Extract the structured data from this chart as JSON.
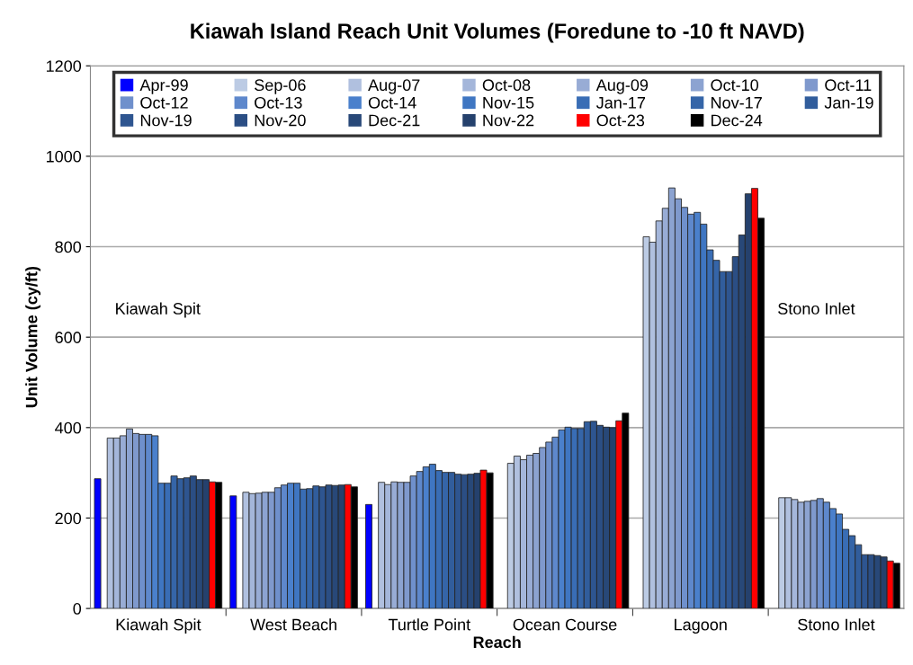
{
  "chart_data": {
    "type": "bar",
    "title": "Kiawah Island Reach Unit Volumes (Foredune to -10 ft NAVD)",
    "xlabel": "Reach",
    "ylabel": "Unit Volume (cy/ft)",
    "categories": [
      "Kiawah Spit",
      "West Beach",
      "Turtle Point",
      "Ocean Course",
      "Lagoon",
      "Stono Inlet"
    ],
    "ylim": [
      0,
      1200
    ],
    "yticks": [
      0,
      200,
      400,
      600,
      800,
      1000,
      1200
    ],
    "grid": "y",
    "legend": "top",
    "annotations": [
      "Kiawah Spit",
      "Stono Inlet"
    ],
    "series": [
      {
        "name": "Apr-99",
        "color": "#0000ff",
        "values": [
          287,
          249,
          230,
          null,
          null,
          null
        ]
      },
      {
        "name": "Sep-06",
        "color": "#bccbe4",
        "values": [
          null,
          null,
          null,
          321,
          822,
          245
        ]
      },
      {
        "name": "Aug-07",
        "color": "#b0c0df",
        "values": [
          377,
          257,
          279,
          337,
          810,
          245
        ]
      },
      {
        "name": "Oct-08",
        "color": "#a4b6da",
        "values": [
          377,
          254,
          274,
          329,
          857,
          241
        ]
      },
      {
        "name": "Aug-09",
        "color": "#98acd5",
        "values": [
          382,
          255,
          280,
          339,
          885,
          235
        ]
      },
      {
        "name": "Oct-10",
        "color": "#8ca3d1",
        "values": [
          397,
          257,
          279,
          343,
          930,
          237
        ]
      },
      {
        "name": "Oct-11",
        "color": "#7f99cd",
        "values": [
          387,
          257,
          279,
          356,
          906,
          239
        ]
      },
      {
        "name": "Oct-12",
        "color": "#6f90cc",
        "values": [
          385,
          267,
          293,
          368,
          887,
          243
        ]
      },
      {
        "name": "Oct-13",
        "color": "#5e88cc",
        "values": [
          385,
          273,
          303,
          379,
          872,
          235
        ]
      },
      {
        "name": "Oct-14",
        "color": "#4a80cc",
        "values": [
          382,
          277,
          313,
          395,
          876,
          221
        ]
      },
      {
        "name": "Nov-15",
        "color": "#3f76c2",
        "values": [
          277,
          277,
          319,
          401,
          850,
          209
        ]
      },
      {
        "name": "Jan-17",
        "color": "#396db5",
        "values": [
          277,
          264,
          305,
          398,
          793,
          175
        ]
      },
      {
        "name": "Nov-17",
        "color": "#3565a8",
        "values": [
          293,
          265,
          301,
          398,
          770,
          161
        ]
      },
      {
        "name": "Jan-19",
        "color": "#315d9c",
        "values": [
          287,
          271,
          301,
          413,
          745,
          141
        ]
      },
      {
        "name": "Nov-19",
        "color": "#2e5590",
        "values": [
          289,
          269,
          297,
          414,
          745,
          119
        ]
      },
      {
        "name": "Nov-20",
        "color": "#2b4e84",
        "values": [
          293,
          273,
          296,
          405,
          778,
          119
        ]
      },
      {
        "name": "Dec-21",
        "color": "#284878",
        "values": [
          285,
          272,
          297,
          401,
          826,
          117
        ]
      },
      {
        "name": "Nov-22",
        "color": "#25416d",
        "values": [
          285,
          273,
          299,
          400,
          917,
          114
        ]
      },
      {
        "name": "Oct-23",
        "color": "#ff0000",
        "values": [
          280,
          274,
          306,
          415,
          929,
          105
        ]
      },
      {
        "name": "Dec-24",
        "color": "#000000",
        "values": [
          279,
          269,
          300,
          432,
          863,
          100
        ]
      }
    ]
  }
}
